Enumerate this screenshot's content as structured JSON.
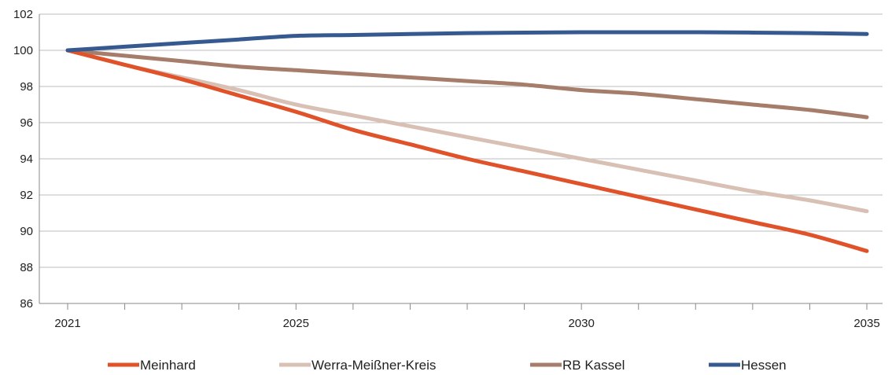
{
  "chart_data": {
    "type": "line",
    "x": [
      2021,
      2022,
      2023,
      2024,
      2025,
      2026,
      2027,
      2028,
      2029,
      2030,
      2031,
      2032,
      2033,
      2034,
      2035
    ],
    "xticks": [
      2021,
      2025,
      2030,
      2035
    ],
    "xtick_labels": [
      "2021",
      "2025",
      "2030",
      "2035"
    ],
    "ylim": [
      86,
      102
    ],
    "yticks": [
      86,
      88,
      90,
      92,
      94,
      96,
      98,
      100,
      102
    ],
    "ytick_labels": [
      "86",
      "88",
      "90",
      "92",
      "94",
      "96",
      "98",
      "100",
      "102"
    ],
    "grid": "horizontal",
    "legend_position": "bottom",
    "series": [
      {
        "name": "Meinhard",
        "color": "#e0522a",
        "values": [
          100,
          99.2,
          98.4,
          97.5,
          96.6,
          95.6,
          94.8,
          94.0,
          93.3,
          92.6,
          91.9,
          91.2,
          90.5,
          89.8,
          88.9
        ]
      },
      {
        "name": "Werra-Meißner-Kreis",
        "color": "#d9c0b4",
        "values": [
          100,
          99.2,
          98.5,
          97.8,
          97.0,
          96.4,
          95.8,
          95.2,
          94.6,
          94.0,
          93.4,
          92.8,
          92.2,
          91.7,
          91.1
        ]
      },
      {
        "name": "RB Kassel",
        "color": "#a57d6a",
        "values": [
          100,
          99.7,
          99.4,
          99.1,
          98.9,
          98.7,
          98.5,
          98.3,
          98.1,
          97.8,
          97.6,
          97.3,
          97.0,
          96.7,
          96.3
        ]
      },
      {
        "name": "Hessen",
        "color": "#36598f",
        "values": [
          100,
          100.2,
          100.4,
          100.6,
          100.8,
          100.85,
          100.9,
          100.95,
          100.98,
          101.0,
          101.0,
          101.0,
          100.98,
          100.95,
          100.9
        ]
      }
    ]
  }
}
